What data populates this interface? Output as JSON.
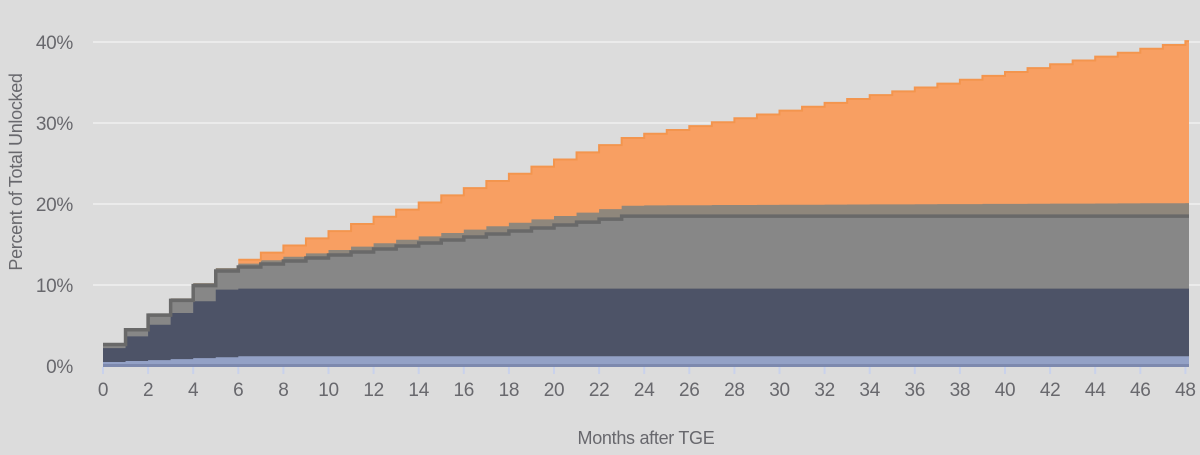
{
  "page": {
    "background_color": "#dcdcdc"
  },
  "chart_data": {
    "type": "area",
    "subtype": "stacked-step-area-monthly",
    "title": "",
    "xlabel": "Months after TGE",
    "ylabel": "Percent of Total Unlocked",
    "legend": "none",
    "grid": "horizontal",
    "xlim": [
      0,
      48.5
    ],
    "ylim": [
      0,
      40
    ],
    "x_tick_values": [
      0,
      2,
      4,
      6,
      8,
      10,
      12,
      14,
      16,
      18,
      20,
      22,
      24,
      26,
      28,
      30,
      32,
      34,
      36,
      38,
      40,
      42,
      44,
      46,
      48
    ],
    "x_tick_labels": [
      "0",
      "2",
      "4",
      "6",
      "8",
      "10",
      "12",
      "14",
      "16",
      "18",
      "20",
      "22",
      "24",
      "26",
      "28",
      "30",
      "32",
      "34",
      "36",
      "38",
      "40",
      "42",
      "44",
      "46",
      "48"
    ],
    "y_tick_values": [
      0,
      10,
      20,
      30,
      40
    ],
    "y_tick_labels": [
      "0%",
      "10%",
      "20%",
      "30%",
      "40%"
    ],
    "x": [
      0,
      1,
      2,
      3,
      4,
      5,
      6,
      7,
      8,
      9,
      10,
      11,
      12,
      13,
      14,
      15,
      16,
      17,
      18,
      19,
      20,
      21,
      22,
      23,
      24,
      25,
      26,
      27,
      28,
      29,
      30,
      31,
      32,
      33,
      34,
      35,
      36,
      37,
      38,
      39,
      40,
      41,
      42,
      43,
      44,
      45,
      46,
      47,
      48
    ],
    "series": [
      {
        "name": "bottom-light-blue-band",
        "color": "#93a1c6",
        "stroke": null,
        "values": [
          0.5,
          0.62,
          0.73,
          0.85,
          0.97,
          1.08,
          1.2,
          1.2,
          1.2,
          1.2,
          1.2,
          1.2,
          1.2,
          1.2,
          1.2,
          1.2,
          1.2,
          1.2,
          1.2,
          1.2,
          1.2,
          1.2,
          1.2,
          1.2,
          1.2,
          1.2,
          1.2,
          1.2,
          1.2,
          1.2,
          1.2,
          1.2,
          1.2,
          1.2,
          1.2,
          1.2,
          1.2,
          1.2,
          1.2,
          1.2,
          1.2,
          1.2,
          1.2,
          1.2,
          1.2,
          1.2,
          1.2,
          1.2,
          1.2
        ]
      },
      {
        "name": "dark-navy-band",
        "color": "#4d5367",
        "stroke": null,
        "values": [
          1.7,
          3.03,
          4.36,
          5.69,
          7.02,
          8.35,
          8.35,
          8.35,
          8.35,
          8.35,
          8.35,
          8.35,
          8.35,
          8.35,
          8.35,
          8.35,
          8.35,
          8.35,
          8.35,
          8.35,
          8.35,
          8.35,
          8.35,
          8.35,
          8.35,
          8.35,
          8.35,
          8.35,
          8.35,
          8.35,
          8.35,
          8.35,
          8.35,
          8.35,
          8.35,
          8.35,
          8.35,
          8.35,
          8.35,
          8.35,
          8.35,
          8.35,
          8.35,
          8.35,
          8.35,
          8.35,
          8.35,
          8.35,
          8.35
        ]
      },
      {
        "name": "mid-gray-band",
        "color": "#878787",
        "stroke": "#696969",
        "values": [
          0.45,
          0.82,
          1.19,
          1.56,
          1.93,
          2.3,
          2.67,
          3.04,
          3.41,
          3.78,
          4.15,
          4.52,
          4.89,
          5.26,
          5.63,
          6.0,
          6.37,
          6.74,
          7.11,
          7.48,
          7.85,
          8.22,
          8.59,
          8.96,
          8.96,
          8.96,
          8.96,
          8.96,
          8.96,
          8.96,
          8.96,
          8.96,
          8.96,
          8.96,
          8.96,
          8.96,
          8.96,
          8.96,
          8.96,
          8.96,
          8.96,
          8.96,
          8.96,
          8.96,
          8.96,
          8.96,
          8.96,
          8.96,
          8.96
        ]
      },
      {
        "name": "warm-gray-band",
        "color": "#8f877c",
        "stroke": null,
        "values": [
          0.12,
          0.17,
          0.22,
          0.27,
          0.32,
          0.37,
          0.42,
          0.47,
          0.52,
          0.57,
          0.62,
          0.67,
          0.72,
          0.77,
          0.82,
          0.87,
          0.92,
          0.97,
          1.02,
          1.07,
          1.12,
          1.17,
          1.22,
          1.27,
          1.32,
          1.33,
          1.34,
          1.36,
          1.37,
          1.38,
          1.39,
          1.4,
          1.41,
          1.43,
          1.44,
          1.45,
          1.46,
          1.47,
          1.48,
          1.5,
          1.51,
          1.52,
          1.53,
          1.54,
          1.55,
          1.57,
          1.58,
          1.59,
          1.6
        ]
      },
      {
        "name": "orange-band",
        "color": "#f89f62",
        "stroke": "#f3954e",
        "values": [
          0,
          0,
          0,
          0,
          0,
          0,
          0.47,
          0.93,
          1.4,
          1.86,
          2.33,
          2.79,
          3.26,
          3.72,
          4.19,
          4.65,
          5.12,
          5.58,
          6.05,
          6.51,
          6.98,
          7.44,
          7.91,
          8.37,
          8.84,
          9.3,
          9.77,
          10.23,
          10.7,
          11.16,
          11.63,
          12.09,
          12.56,
          13.02,
          13.49,
          13.95,
          14.42,
          14.88,
          15.35,
          15.81,
          16.28,
          16.74,
          17.21,
          17.67,
          18.14,
          18.6,
          19.07,
          19.53,
          20.0
        ]
      }
    ],
    "colors": {
      "background": "#dcdcdc",
      "gridline": "#ebebeb",
      "axis_baseline": "#7d89ae",
      "tick_mark": "#c9d2ec",
      "label_text": "#68686d"
    }
  }
}
